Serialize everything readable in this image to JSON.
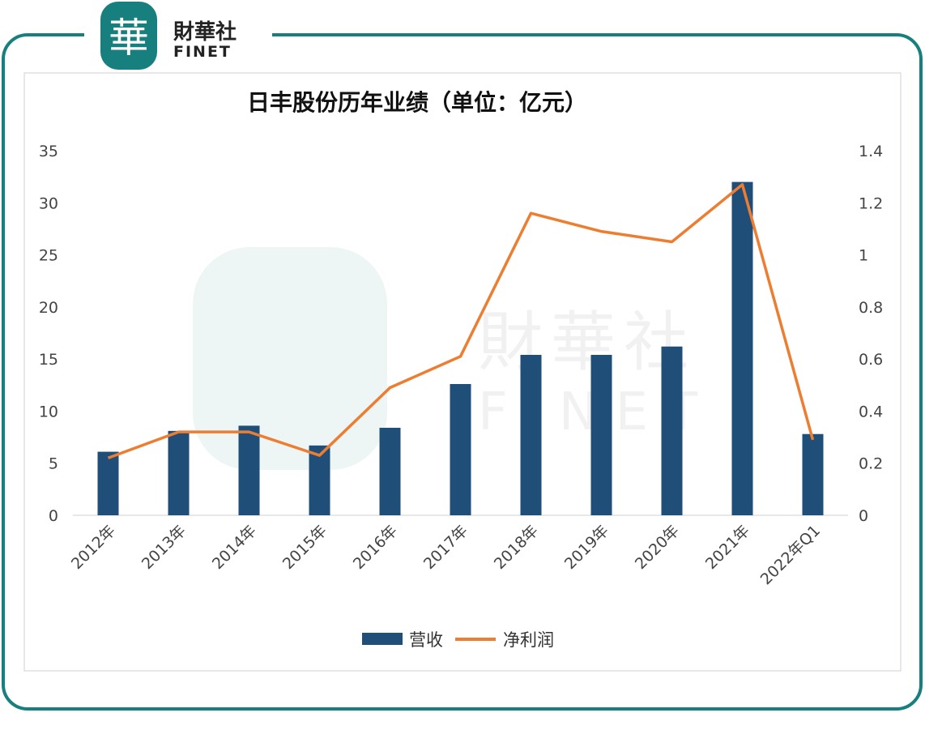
{
  "brand": {
    "logo_char": "華",
    "name_cn": "財華社",
    "name_en": "FINET",
    "color": "#17807f"
  },
  "chart_data": {
    "type": "bar",
    "title": "日丰股份历年业绩（单位：亿元）",
    "categories": [
      "2012年",
      "2013年",
      "2014年",
      "2015年",
      "2016年",
      "2017年",
      "2018年",
      "2019年",
      "2020年",
      "2021年",
      "2022年Q1"
    ],
    "series": [
      {
        "name": "营收",
        "type": "bar",
        "axis": "left",
        "color": "#1f4e79",
        "values": [
          6.1,
          8.1,
          8.6,
          6.7,
          8.4,
          12.6,
          15.4,
          15.4,
          16.2,
          32.0,
          7.8
        ]
      },
      {
        "name": "净利润",
        "type": "line",
        "axis": "right",
        "color": "#ed7d31",
        "values": [
          0.22,
          0.32,
          0.32,
          0.23,
          0.49,
          0.61,
          1.16,
          1.09,
          1.05,
          1.27,
          0.29
        ]
      }
    ],
    "y_left": {
      "ylim": [
        0,
        35
      ],
      "ticks": [
        "0",
        "5",
        "10",
        "15",
        "20",
        "25",
        "30",
        "35"
      ]
    },
    "y_right": {
      "ylim": [
        0,
        1.4
      ],
      "ticks": [
        "0",
        "0.2",
        "0.4",
        "0.6",
        "0.8",
        "1",
        "1.2",
        "1.4"
      ]
    },
    "grid": false,
    "legend": "bottom"
  }
}
